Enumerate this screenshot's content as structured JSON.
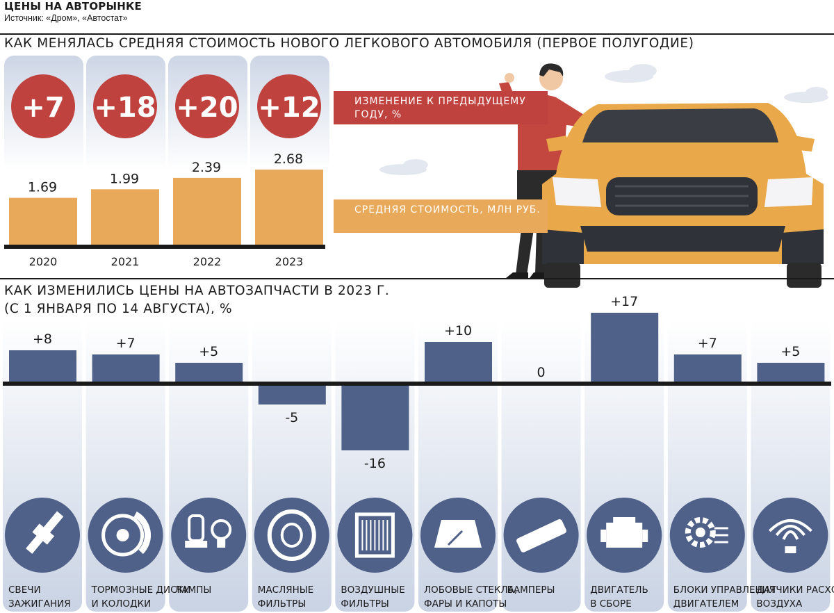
{
  "header": {
    "title": "ЦЕНЫ НА АВТОРЫНКЕ",
    "source": "Источник: «Дром», «Автостат»"
  },
  "section1": {
    "title": "КАК МЕНЯЛАСЬ СРЕДНЯЯ СТОИМОСТЬ НОВОГО ЛЕГКОВОГО АВТОМОБИЛЯ (ПЕРВОЕ ПОЛУГОДИЕ)",
    "callout_change": "ИЗМЕНЕНИЕ К ПРЕДЫДУЩЕМУ ГОДУ, %",
    "callout_price": "СРЕДНЯЯ СТОИМОСТЬ, МЛН РУБ."
  },
  "section2": {
    "title_line1": "КАК ИЗМЕНИЛИСЬ ЦЕНЫ НА АВТОЗАПЧАСТИ В 2023 Г.",
    "title_line2": "(С 1 ЯНВАРЯ ПО 14 АВГУСТА), %"
  },
  "colors": {
    "bar_orange": "#e9a95a",
    "circle_red": "#c0423e",
    "bar_blue": "#4f6089",
    "icon_circle": "#4f6089",
    "panel_gradient_top": "#ffffff",
    "panel_gradient_bottom": "#c9d3e4"
  },
  "chart_data": [
    {
      "type": "bar",
      "title": "КАК МЕНЯЛАСЬ СРЕДНЯЯ СТОИМОСТЬ НОВОГО ЛЕГКОВОГО АВТОМОБИЛЯ (ПЕРВОЕ ПОЛУГОДИЕ)",
      "categories": [
        "2020",
        "2021",
        "2022",
        "2023"
      ],
      "series": [
        {
          "name": "СРЕДНЯЯ СТОИМОСТЬ, МЛН РУБ.",
          "values": [
            1.69,
            1.99,
            2.39,
            2.68
          ],
          "labels": [
            "1.69",
            "1.99",
            "2.39",
            "2.68"
          ]
        },
        {
          "name": "ИЗМЕНЕНИЕ К ПРЕДЫДУЩЕМУ ГОДУ, %",
          "values": [
            7,
            18,
            20,
            12
          ],
          "labels": [
            "+7",
            "+18",
            "+20",
            "+12"
          ]
        }
      ],
      "ylim": [
        0,
        3
      ],
      "grid": false
    },
    {
      "type": "bar",
      "title": "КАК ИЗМЕНИЛИСЬ ЦЕНЫ НА АВТОЗАПЧАСТИ В 2023 Г. (С 1 ЯНВАРЯ ПО 14 АВГУСТА), %",
      "categories": [
        [
          "СВЕЧИ",
          "ЗАЖИГАНИЯ"
        ],
        [
          "ТОРМОЗНЫЕ ДИСКИ",
          "И КОЛОДКИ"
        ],
        [
          "ЛАМПЫ"
        ],
        [
          "МАСЛЯНЫЕ",
          "ФИЛЬТРЫ"
        ],
        [
          "ВОЗДУШНЫЕ",
          "ФИЛЬТРЫ"
        ],
        [
          "ЛОБОВЫЕ СТЕКЛА,",
          "ФАРЫ И КАПОТЫ"
        ],
        [
          "БАМПЕРЫ"
        ],
        [
          "ДВИГАТЕЛЬ",
          "В СБОРЕ"
        ],
        [
          "БЛОКИ УПРАВЛЕНИЯ",
          "ДВИГАТЕЛЕМ"
        ],
        [
          "ДАТЧИКИ РАСХОДА",
          "ВОЗДУХА"
        ]
      ],
      "values": [
        8,
        7,
        5,
        -5,
        -16,
        10,
        0,
        17,
        7,
        5
      ],
      "labels": [
        "+8",
        "+7",
        "+5",
        "-5",
        "-16",
        "+10",
        "0",
        "+17",
        "+7",
        "+5"
      ],
      "icons": [
        "spark-plug-icon",
        "brake-disc-icon",
        "lamp-icon",
        "oil-filter-icon",
        "air-filter-icon",
        "windshield-icon",
        "bumper-icon",
        "engine-icon",
        "ecu-icon",
        "air-sensor-icon"
      ],
      "ylim": [
        -17,
        17
      ],
      "grid": false
    }
  ]
}
